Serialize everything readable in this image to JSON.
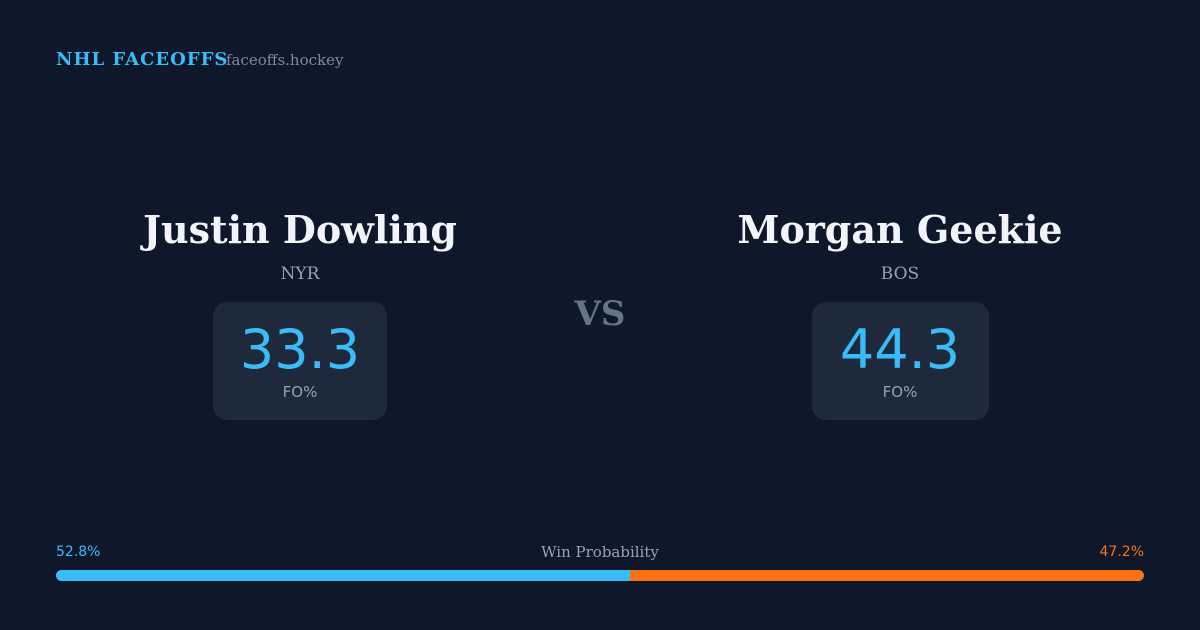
{
  "header": {
    "title": "NHL FACEOFFS",
    "site": "faceoffs.hockey"
  },
  "players": [
    {
      "name": "Justin Dowling",
      "team": "NYR",
      "fo_pct": 33.3,
      "fo_label": "FO%"
    },
    {
      "name": "Morgan Geekie",
      "team": "BOS",
      "fo_pct": 44.3,
      "fo_label": "FO%"
    }
  ],
  "vs": "VS",
  "win_probability": {
    "label": "Win Probability",
    "left": {
      "value": 52.8,
      "label": "52.8%",
      "color": "#38bdf8"
    },
    "right": {
      "value": 47.2,
      "label": "47.2%",
      "color": "#f97316"
    }
  }
}
